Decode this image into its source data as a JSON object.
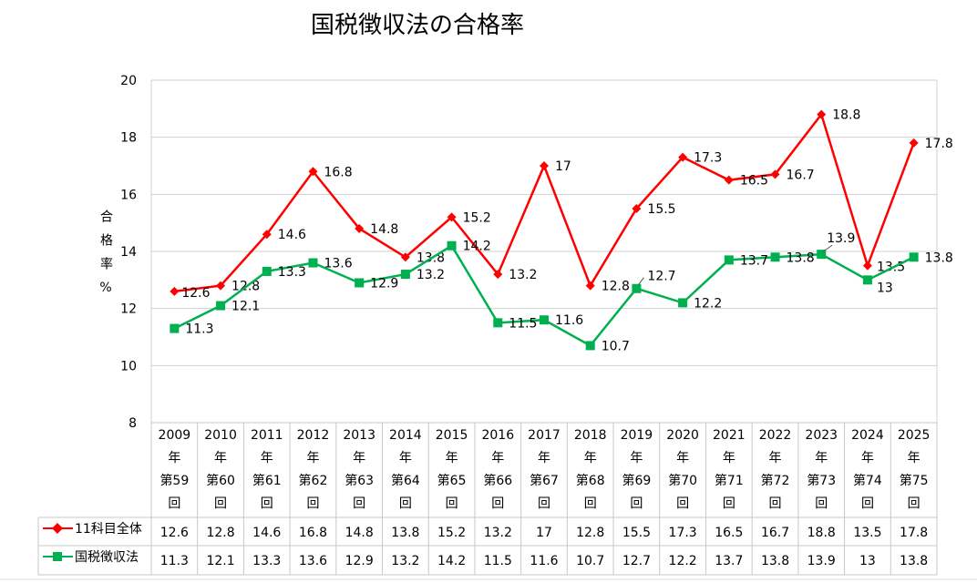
{
  "chart_data": {
    "type": "line",
    "title": "国税徴収法の合格率",
    "ylabel": "合格率%",
    "ylabel_chars": [
      "合",
      "格",
      "率",
      "%"
    ],
    "ylim": [
      8,
      20
    ],
    "yticks": [
      8,
      10,
      12,
      14,
      16,
      18,
      20
    ],
    "grid": true,
    "categories": [
      [
        "2009",
        "年",
        "第59",
        "回"
      ],
      [
        "2010",
        "年",
        "第60",
        "回"
      ],
      [
        "2011",
        "年",
        "第61",
        "回"
      ],
      [
        "2012",
        "年",
        "第62",
        "回"
      ],
      [
        "2013",
        "年",
        "第63",
        "回"
      ],
      [
        "2014",
        "年",
        "第64",
        "回"
      ],
      [
        "2015",
        "年",
        "第65",
        "回"
      ],
      [
        "2016",
        "年",
        "第66",
        "回"
      ],
      [
        "2017",
        "年",
        "第67",
        "回"
      ],
      [
        "2018",
        "年",
        "第68",
        "回"
      ],
      [
        "2019",
        "年",
        "第69",
        "回"
      ],
      [
        "2020",
        "年",
        "第70",
        "回"
      ],
      [
        "2021",
        "年",
        "第71",
        "回"
      ],
      [
        "2022",
        "年",
        "第72",
        "回"
      ],
      [
        "2023",
        "年",
        "第73",
        "回"
      ],
      [
        "2024",
        "年",
        "第74",
        "回"
      ],
      [
        "2025",
        "年",
        "第75",
        "回"
      ]
    ],
    "series": [
      {
        "name": "11科目全体",
        "color": "#ff0000",
        "marker": "diamond",
        "values": [
          12.6,
          12.8,
          14.6,
          16.8,
          14.8,
          13.8,
          15.2,
          13.2,
          17,
          12.8,
          15.5,
          17.3,
          16.5,
          16.7,
          18.8,
          13.5,
          17.8
        ]
      },
      {
        "name": "国税徴収法",
        "color": "#00b050",
        "marker": "square",
        "values": [
          11.3,
          12.1,
          13.3,
          13.6,
          12.9,
          13.2,
          14.2,
          11.5,
          11.6,
          10.7,
          12.7,
          12.2,
          13.7,
          13.8,
          13.9,
          13,
          13.8
        ]
      }
    ],
    "legend": "data-table"
  }
}
